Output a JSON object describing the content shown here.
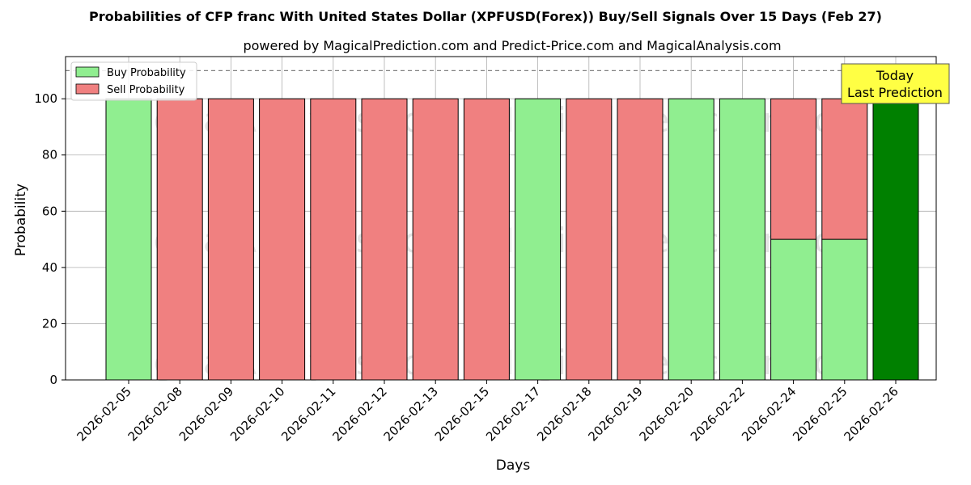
{
  "chart_data": {
    "type": "bar",
    "title": "Probabilities of CFP franc With United States Dollar (XPFUSD(Forex)) Buy/Sell Signals Over 15 Days (Feb 27)",
    "subtitle": "powered by MagicalPrediction.com and Predict-Price.com and MagicalAnalysis.com",
    "xlabel": "Days",
    "ylabel": "Probability",
    "ylim": [
      0,
      115
    ],
    "yticks": [
      "0",
      "20",
      "40",
      "60",
      "80",
      "100"
    ],
    "grid": true,
    "legend_position": "top-left",
    "stacked": true,
    "categories": [
      "2026-02-05",
      "2026-02-08",
      "2026-02-09",
      "2026-02-10",
      "2026-02-11",
      "2026-02-12",
      "2026-02-13",
      "2026-02-15",
      "2026-02-17",
      "2026-02-18",
      "2026-02-19",
      "2026-02-20",
      "2026-02-22",
      "2026-02-24",
      "2026-02-25",
      "2026-02-26"
    ],
    "series": [
      {
        "name": "Buy Probability",
        "color": "#90ee90",
        "values": [
          100,
          0,
          0,
          0,
          0,
          0,
          0,
          0,
          100,
          0,
          0,
          100,
          100,
          50,
          50,
          100
        ]
      },
      {
        "name": "Sell Probability",
        "color": "#f08080",
        "values": [
          0,
          100,
          100,
          100,
          100,
          100,
          100,
          100,
          0,
          100,
          100,
          0,
          0,
          50,
          50,
          0
        ]
      }
    ],
    "highlight": {
      "index": 15,
      "color": "#008000"
    },
    "reference_line": {
      "y": 110,
      "style": "dashed",
      "color": "#808080"
    },
    "annotation": {
      "lines": [
        "Today",
        "Last Prediction"
      ],
      "background": "#ffff44"
    },
    "watermarks": [
      "MagicalAnalysis.com",
      "MagicalPrediction.com"
    ]
  }
}
